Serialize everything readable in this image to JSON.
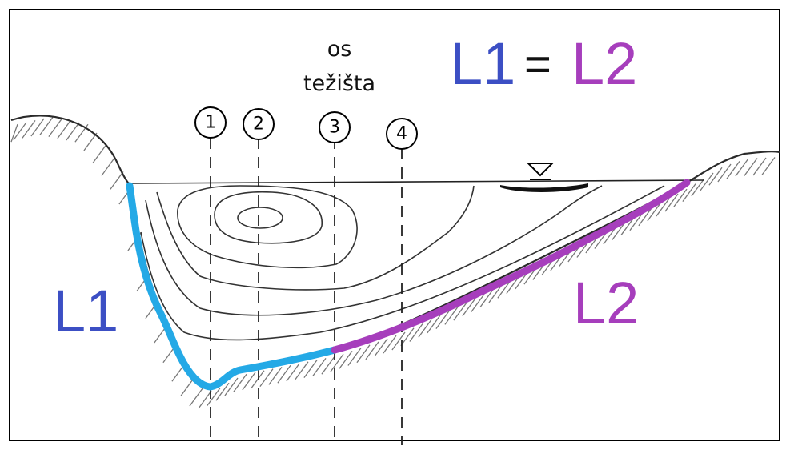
{
  "axis_label": {
    "line1": "os",
    "line2": "težišta"
  },
  "equation": {
    "left": "L1",
    "op": "=",
    "right": "L2"
  },
  "side_labels": {
    "left": "L1",
    "right": "L2"
  },
  "verticals": [
    "1",
    "2",
    "3",
    "4"
  ],
  "colors": {
    "L1": "#24a9e6",
    "L2": "#a63ebc",
    "label_blue": "#3c4fc4",
    "label_purple": "#a63ebc"
  },
  "icons": {
    "water_level": "water-level-triangle-icon"
  }
}
